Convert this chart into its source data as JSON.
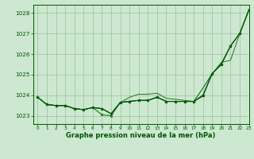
{
  "background_color": "#cce8d0",
  "grid_color": "#9dbf9d",
  "line_color_dark": "#005500",
  "line_color_mid": "#227722",
  "xlabel": "Graphe pression niveau de la mer (hPa)",
  "xlim": [
    -0.5,
    23
  ],
  "ylim": [
    1022.6,
    1028.4
  ],
  "yticks": [
    1023,
    1024,
    1025,
    1026,
    1027,
    1028
  ],
  "xticks": [
    0,
    1,
    2,
    3,
    4,
    5,
    6,
    7,
    8,
    9,
    10,
    11,
    12,
    13,
    14,
    15,
    16,
    17,
    18,
    19,
    20,
    21,
    22,
    23
  ],
  "series_main": [
    1023.9,
    1023.55,
    1023.5,
    1023.5,
    1023.35,
    1023.3,
    1023.4,
    1023.35,
    1023.1,
    1023.65,
    1023.7,
    1023.75,
    1023.75,
    1023.9,
    1023.7,
    1023.7,
    1023.7,
    1023.7,
    1024.0,
    1025.05,
    1025.5,
    1026.4,
    1027.0,
    1028.15
  ],
  "series_dip": [
    1023.9,
    1023.55,
    1023.5,
    1023.5,
    1023.35,
    1023.3,
    1023.4,
    1023.05,
    1023.0,
    1023.65,
    1023.7,
    1023.75,
    1023.75,
    1023.9,
    1023.7,
    1023.7,
    1023.7,
    1023.7,
    1024.0,
    1025.05,
    1025.5,
    1026.4,
    1027.0,
    1028.15
  ],
  "series_upper": [
    1023.9,
    1023.55,
    1023.5,
    1023.5,
    1023.35,
    1023.3,
    1023.4,
    1023.35,
    1023.1,
    1023.65,
    1023.9,
    1024.05,
    1024.05,
    1024.1,
    1023.85,
    1023.8,
    1023.75,
    1023.7,
    1023.95,
    1025.05,
    1025.6,
    1025.7,
    1027.0,
    1028.15
  ],
  "series_top": [
    1023.9,
    1023.55,
    1023.5,
    1023.5,
    1023.35,
    1023.3,
    1023.4,
    1023.35,
    1023.1,
    1023.65,
    1023.7,
    1023.75,
    1023.75,
    1023.9,
    1023.7,
    1023.7,
    1023.7,
    1023.7,
    1024.35,
    1025.05,
    1025.55,
    1026.4,
    1027.0,
    1028.15
  ]
}
